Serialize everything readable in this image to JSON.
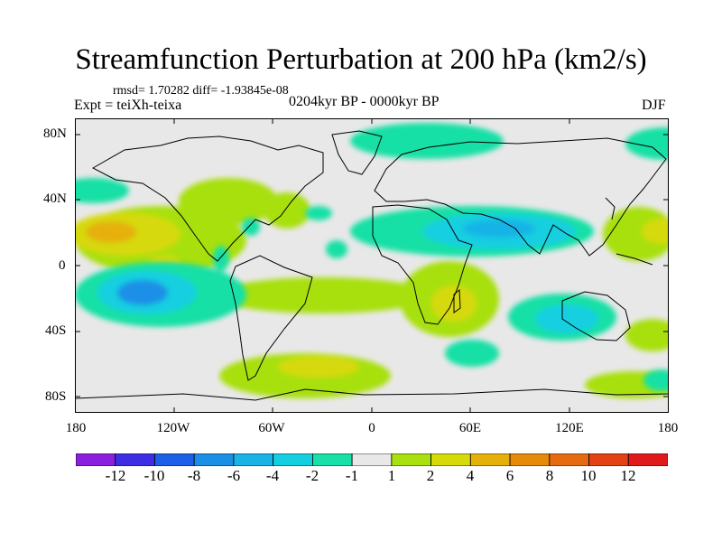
{
  "title": "Streamfunction Perturbation at 200 hPa (km2/s)",
  "stats_text": "rmsd= 1.70282 diff= -1.93845e-08",
  "expt_text": "Expt = teiXh-teixa",
  "period_text": "0204kyr BP - 0000kyr BP",
  "season_text": "DJF",
  "axes": {
    "lat_ticks": [
      "80N",
      "40N",
      "0",
      "40S",
      "80S"
    ],
    "lon_ticks": [
      "180",
      "120W",
      "60W",
      "0",
      "60E",
      "120E",
      "180"
    ]
  },
  "colorbar": {
    "levels": [
      "-12",
      "-10",
      "-8",
      "-6",
      "-4",
      "-2",
      "-1",
      "1",
      "2",
      "4",
      "6",
      "8",
      "10",
      "12"
    ],
    "colors": [
      "#8b1fe0",
      "#3d2ee6",
      "#1c60e8",
      "#1a8fe6",
      "#19b3e6",
      "#14cfe0",
      "#18e0a6",
      "#e8e8e8",
      "#a8e010",
      "#d6d90a",
      "#e6b00a",
      "#e68a0a",
      "#e66a10",
      "#e34214",
      "#e01a1a"
    ]
  },
  "legend_colors": {
    "background": "#e8e8e8",
    "coast": "#000000"
  }
}
